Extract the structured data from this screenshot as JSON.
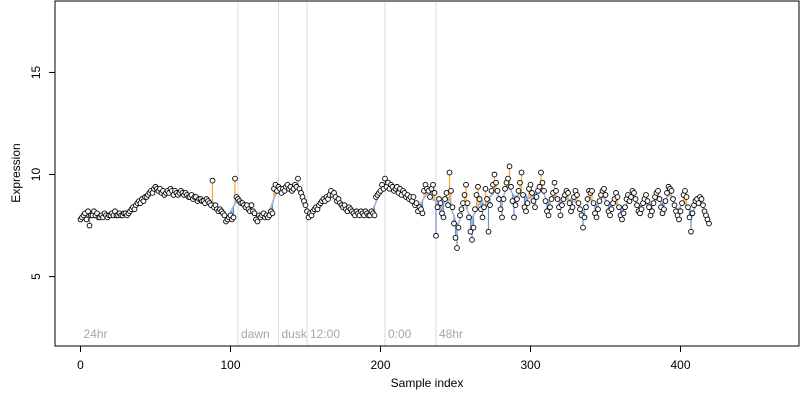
{
  "chart_data": {
    "type": "scatter",
    "xlabel": "Sample index",
    "ylabel": "Expression",
    "xlim": [
      -17,
      479
    ],
    "ylim": [
      1.6,
      18.5
    ],
    "x_ticks": [
      0,
      100,
      200,
      300,
      400
    ],
    "y_ticks": [
      5,
      10,
      15
    ],
    "grid": false,
    "phase_markers": [
      {
        "label": "24hr",
        "x": 0
      },
      {
        "label": "dawn",
        "x": 105
      },
      {
        "label": "dusk",
        "x": 132
      },
      {
        "label": "12:00",
        "x": 151
      },
      {
        "label": "0:00",
        "x": 203
      },
      {
        "label": "48hr",
        "x": 237
      }
    ],
    "colors": {
      "points_fill": "#ffffff",
      "points_stroke": "#000000",
      "deviation_above": "#ffa726",
      "deviation_below": "#6b8fd6",
      "fit_line": "#9ab1e0",
      "marker_line": "#d9d9d9",
      "marker_label": "#a6a6a6"
    },
    "series": [
      {
        "values": [
          7.8,
          7.9,
          8.0,
          8.1,
          7.8,
          8.2,
          7.5,
          8.0,
          8.0,
          8.2,
          8.0,
          8.1,
          7.9,
          7.9,
          8.0,
          7.9,
          8.1,
          8.0,
          7.9,
          8.0,
          8.0,
          8.1,
          8.0,
          8.2,
          8.0,
          8.0,
          8.1,
          8.0,
          8.0,
          8.1,
          8.1,
          8.0,
          8.1,
          8.2,
          8.3,
          8.4,
          8.3,
          8.5,
          8.6,
          8.7,
          8.6,
          8.8,
          8.7,
          8.9,
          8.9,
          9.0,
          9.1,
          9.2,
          9.1,
          9.3,
          9.4,
          9.3,
          9.2,
          9.3,
          9.1,
          9.2,
          9.0,
          9.1,
          9.2,
          9.1,
          9.3,
          9.2,
          9.0,
          9.2,
          9.1,
          9.0,
          9.1,
          9.2,
          9.1,
          9.0,
          9.1,
          9.0,
          8.9,
          8.9,
          9.0,
          8.8,
          8.9,
          8.9,
          8.7,
          8.8,
          8.8,
          8.7,
          8.7,
          8.6,
          8.8,
          8.7,
          8.6,
          8.5,
          9.7,
          8.4,
          8.5,
          8.3,
          8.2,
          8.3,
          8.2,
          8.1,
          8.0,
          7.7,
          7.8,
          7.9,
          8.0,
          7.8,
          7.9,
          9.8,
          8.9,
          8.8,
          8.7,
          8.6,
          8.6,
          8.5,
          8.4,
          8.5,
          8.3,
          8.2,
          8.5,
          8.2,
          8.1,
          7.8,
          7.7,
          8.0,
          7.9,
          8.0,
          8.1,
          7.9,
          8.0,
          7.9,
          8.0,
          8.2,
          8.1,
          9.3,
          9.5,
          9.2,
          9.4,
          9.3,
          9.1,
          9.3,
          9.2,
          9.4,
          9.5,
          9.3,
          9.4,
          9.2,
          9.3,
          9.5,
          9.4,
          9.8,
          9.3,
          9.1,
          8.9,
          8.7,
          8.5,
          8.2,
          7.9,
          8.1,
          8.0,
          8.2,
          8.3,
          8.4,
          8.3,
          8.5,
          8.6,
          8.7,
          8.8,
          8.7,
          8.9,
          8.8,
          9.0,
          9.2,
          9.0,
          9.1,
          8.9,
          8.7,
          8.8,
          8.6,
          8.5,
          8.4,
          8.5,
          8.3,
          8.2,
          8.4,
          8.3,
          8.2,
          8.1,
          8.0,
          8.2,
          8.1,
          8.0,
          8.2,
          8.1,
          8.0,
          8.2,
          8.1,
          8.0,
          8.0,
          8.2,
          8.1,
          8.0,
          8.9,
          9.0,
          9.1,
          9.2,
          9.5,
          9.3,
          9.8,
          9.4,
          9.6,
          9.3,
          9.5,
          9.4,
          9.2,
          9.3,
          9.4,
          9.1,
          9.3,
          9.0,
          9.2,
          9.1,
          8.9,
          9.0,
          8.8,
          8.9,
          8.7,
          8.9,
          8.5,
          8.6,
          8.2,
          8.4,
          8.3,
          8.1,
          9.2,
          9.5,
          9.3,
          9.2,
          8.9,
          9.3,
          9.5,
          9.1,
          7.0,
          8.4,
          8.8,
          8.6,
          8.1,
          7.9,
          8.8,
          9.1,
          8.5,
          10.1,
          9.2,
          8.4,
          7.6,
          6.9,
          6.4,
          7.4,
          8.0,
          8.3,
          8.6,
          9.0,
          9.5,
          8.6,
          7.9,
          7.2,
          6.8,
          7.4,
          8.3,
          9.0,
          9.4,
          8.8,
          8.3,
          7.9,
          8.4,
          9.3,
          8.8,
          7.2,
          8.5,
          9.2,
          9.5,
          10.0,
          9.6,
          9.2,
          8.8,
          8.3,
          7.9,
          8.8,
          9.3,
          9.6,
          9.8,
          10.4,
          9.4,
          8.7,
          7.9,
          8.5,
          8.8,
          9.2,
          9.6,
          10.1,
          9.0,
          8.4,
          8.2,
          8.6,
          9.3,
          9.5,
          9.1,
          8.7,
          8.4,
          8.9,
          9.2,
          9.4,
          10.1,
          9.6,
          9.2,
          8.7,
          8.2,
          8.0,
          8.4,
          8.8,
          9.1,
          9.6,
          9.2,
          8.8,
          8.4,
          8.0,
          8.5,
          8.8,
          9.0,
          9.2,
          9.1,
          8.6,
          8.2,
          8.4,
          8.9,
          9.2,
          9.0,
          8.6,
          8.3,
          8.0,
          7.4,
          7.9,
          8.4,
          8.8,
          9.2,
          9.1,
          9.2,
          8.6,
          8.1,
          7.9,
          8.3,
          8.7,
          9.0,
          9.2,
          9.3,
          9.0,
          8.6,
          8.2,
          8.0,
          8.3,
          8.6,
          8.8,
          9.1,
          8.9,
          8.4,
          8.0,
          7.8,
          8.1,
          8.4,
          8.8,
          9.0,
          8.7,
          8.9,
          9.2,
          9.1,
          8.8,
          8.5,
          8.2,
          8.1,
          8.3,
          8.6,
          8.8,
          9.0,
          8.7,
          8.4,
          8.0,
          8.2,
          8.6,
          8.9,
          9.1,
          9.2,
          8.8,
          8.4,
          8.1,
          8.3,
          8.7,
          9.1,
          9.4,
          9.3,
          9.2,
          8.8,
          8.5,
          8.2,
          8.0,
          7.8,
          8.2,
          8.6,
          9.0,
          9.2,
          8.9,
          8.4,
          7.9,
          7.2,
          8.1,
          8.5,
          8.7,
          8.8,
          8.6,
          8.9,
          8.8,
          8.5,
          8.2,
          8.0,
          7.8,
          7.6
        ]
      }
    ]
  }
}
